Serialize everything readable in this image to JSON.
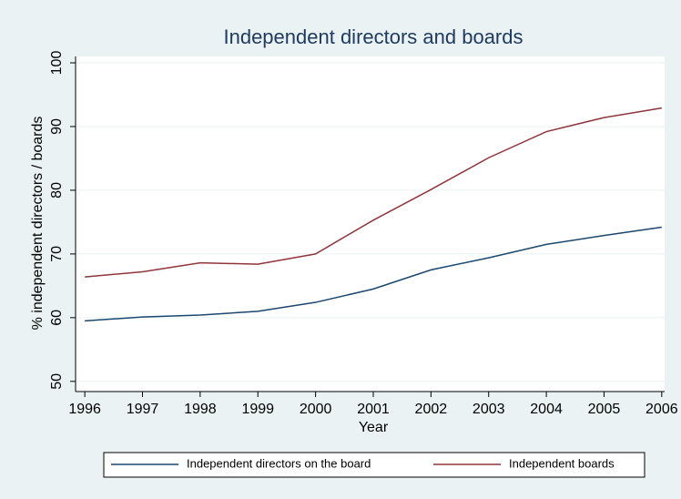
{
  "chart_data": {
    "type": "line",
    "title": "Independent directors and boards",
    "x_label": "Year",
    "y_label": "% independent directors / boards",
    "x": [
      1996,
      1997,
      1998,
      1999,
      2000,
      2001,
      2002,
      2003,
      2004,
      2005,
      2006
    ],
    "series": [
      {
        "name": "Independent directors on the board",
        "color": "#1a476f",
        "values": [
          59.5,
          60.1,
          60.4,
          61.0,
          62.4,
          64.5,
          67.5,
          69.4,
          71.5,
          72.9,
          74.2
        ]
      },
      {
        "name": "Independent boards",
        "color": "#90353b",
        "values": [
          66.4,
          67.2,
          68.6,
          68.4,
          70.0,
          75.3,
          80.1,
          85.1,
          89.2,
          91.4,
          92.9
        ]
      }
    ],
    "xlim": [
      1995.84,
      2006.05
    ],
    "xticks": [
      1996,
      1997,
      1998,
      1999,
      2000,
      2001,
      2002,
      2003,
      2004,
      2005,
      2006
    ],
    "ylim": [
      48.4,
      101
    ],
    "yticks": [
      50,
      60,
      70,
      80,
      90,
      100
    ],
    "grid": true
  }
}
